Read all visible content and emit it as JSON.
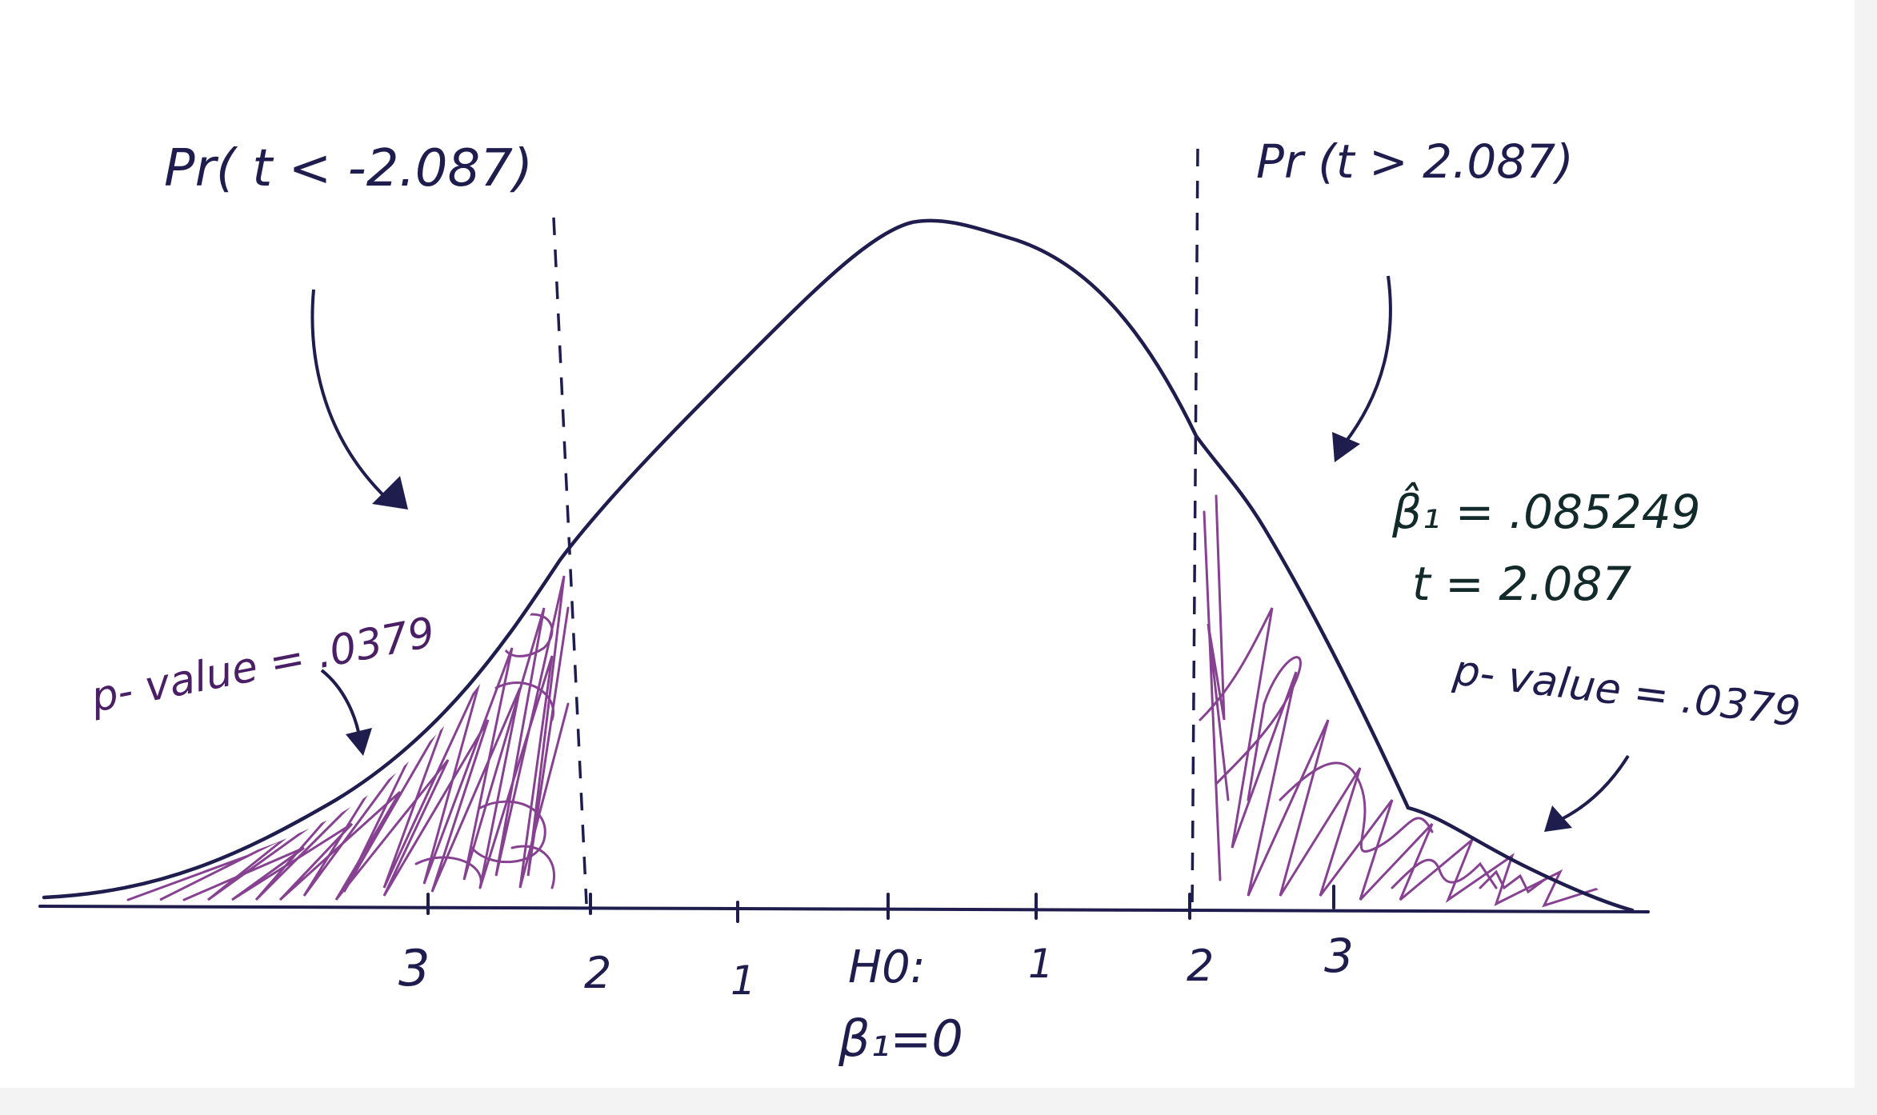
{
  "annotations": {
    "left_prob": "Pr( t < -2.087)",
    "right_prob": "Pr (t > 2.087)",
    "left_pvalue": "p- value = .0379",
    "right_pvalue": "p- value = .0379",
    "beta_hat": "β̂₁ = .085249",
    "t_stat": "t = 2.087"
  },
  "axis": {
    "tick_labels": [
      "3",
      "2",
      "1",
      "H0:",
      "1",
      "2",
      "3"
    ],
    "null_hypothesis": "β₁=0"
  },
  "colors": {
    "curve": "#1f1d4d",
    "shading": "#7a2d86",
    "text_dark": "#1f1d4d",
    "text_purple": "#4a1f66",
    "text_green": "#122a2a"
  }
}
